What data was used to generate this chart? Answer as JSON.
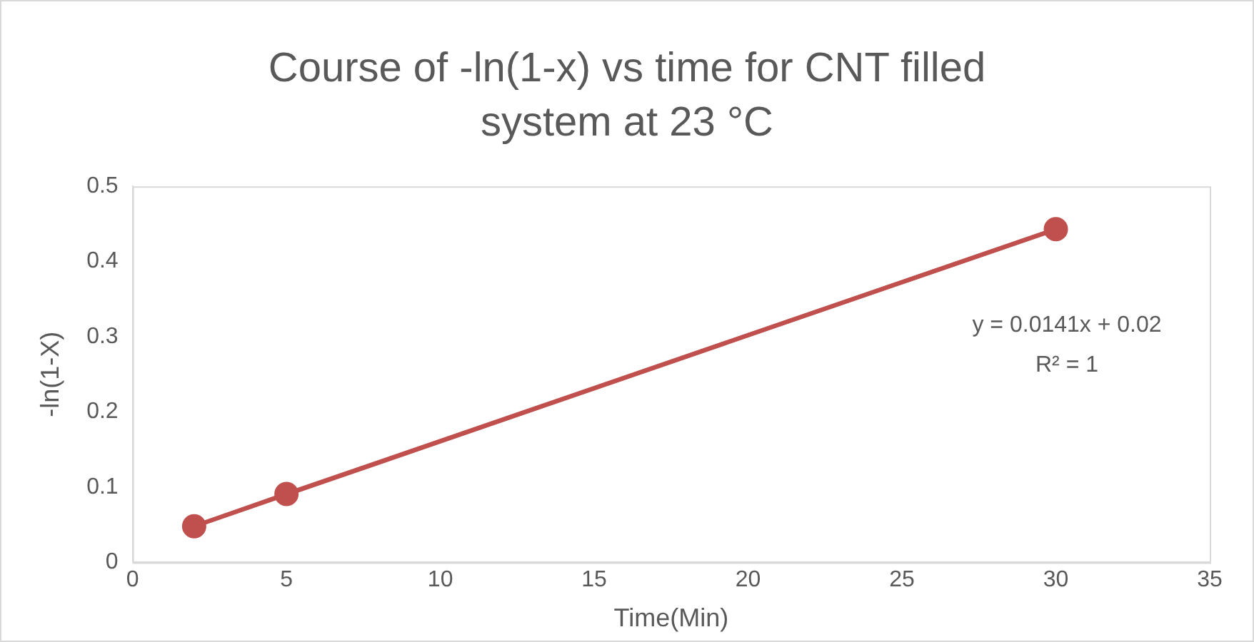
{
  "chart_data": {
    "type": "line",
    "title": "Course of -ln(1-x) vs time for CNT filled system at 23 °C",
    "xlabel": "Time(Min)",
    "ylabel": "-ln(1-X)",
    "x": [
      2,
      5,
      30
    ],
    "series": [
      {
        "type": "line",
        "color": "#c0504d",
        "values": [
          0.048,
          0.091,
          0.443
        ],
        "marker": "circle"
      },
      {
        "type": "line",
        "color": "#c0504d",
        "x": [
          2,
          30
        ],
        "values": [
          0.048,
          0.443
        ],
        "marker": "none"
      }
    ],
    "xlim": [
      0,
      35
    ],
    "xticks": [
      0,
      5,
      10,
      15,
      20,
      25,
      30,
      35
    ],
    "ylim": [
      0,
      0.5
    ],
    "yticks": [
      0,
      0.1,
      0.2,
      0.3,
      0.4,
      0.5
    ],
    "grid": false,
    "legend": false,
    "annotations": [
      "y = 0.0141x + 0.02",
      "R² = 1"
    ]
  }
}
